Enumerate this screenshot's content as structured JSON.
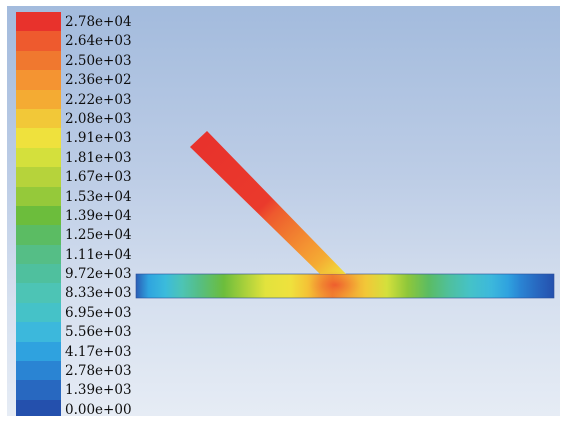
{
  "legend": {
    "entries": [
      {
        "label": "2.78e+04",
        "color": "#e8322c"
      },
      {
        "label": "2.64e+03",
        "color": "#ee5a2e"
      },
      {
        "label": "2.50e+03",
        "color": "#f0782f"
      },
      {
        "label": "2.36e+02",
        "color": "#f49432"
      },
      {
        "label": "2.22e+03",
        "color": "#f4ab33"
      },
      {
        "label": "2.08e+03",
        "color": "#f2c838"
      },
      {
        "label": "1.91e+03",
        "color": "#efe13d"
      },
      {
        "label": "1.81e+03",
        "color": "#d4e03c"
      },
      {
        "label": "1.67e+03",
        "color": "#b6d33b"
      },
      {
        "label": "1.53e+04",
        "color": "#95c93a"
      },
      {
        "label": "1.39e+04",
        "color": "#6cbd3c"
      },
      {
        "label": "1.25e+04",
        "color": "#5bbc63"
      },
      {
        "label": "1.11e+04",
        "color": "#55be86"
      },
      {
        "label": "9.72e+03",
        "color": "#4fc09e"
      },
      {
        "label": "8.33e+03",
        "color": "#4dc4b5"
      },
      {
        "label": "6.95e+03",
        "color": "#45c2c8"
      },
      {
        "label": "5.56e+03",
        "color": "#3cb8dc"
      },
      {
        "label": "4.17e+03",
        "color": "#2fa2df"
      },
      {
        "label": "2.78e+03",
        "color": "#2a84d3"
      },
      {
        "label": "1.39e+03",
        "color": "#2868c0"
      },
      {
        "label": "0.00e+00",
        "color": "#2450ad"
      }
    ]
  },
  "colors": {
    "background_top": "#a3bbdd",
    "background_bottom": "#e6ecf5"
  }
}
